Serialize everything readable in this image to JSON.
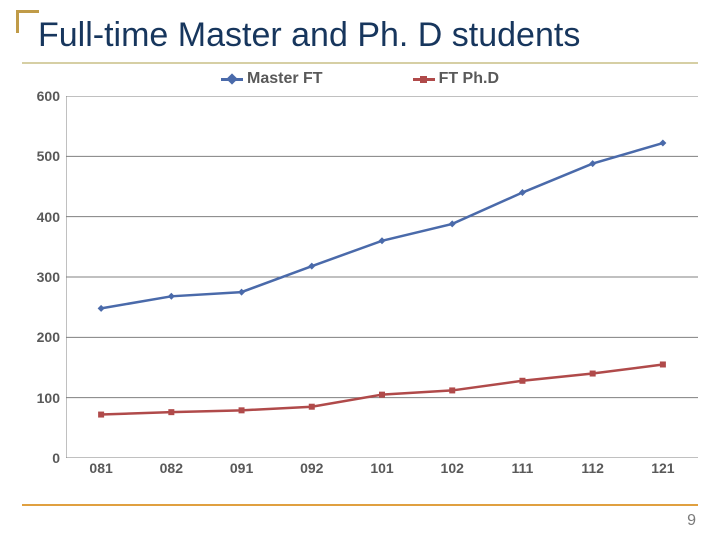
{
  "title": "Full-time Master and Ph. D students",
  "title_color": "#17365d",
  "accent_corner_color": "#c09b48",
  "title_rule_color": "#d6cfa4",
  "bottom_rule_color": "#e0a040",
  "page_number": "9",
  "page_number_color": "#7a7a7a",
  "chart": {
    "type": "line",
    "background_color": "#ffffff",
    "grid_color": "#808080",
    "axis_color": "#808080",
    "yaxis": {
      "min": 0,
      "max": 600,
      "tick_step": 100,
      "label_fontsize": 14,
      "label_color": "#595959"
    },
    "xaxis": {
      "categories": [
        "081",
        "082",
        "091",
        "092",
        "101",
        "102",
        "111",
        "112",
        "121"
      ],
      "label_fontsize": 14,
      "label_color": "#595959"
    },
    "series": [
      {
        "name": "Master FT",
        "color": "#4a6aaa",
        "marker": "diamond",
        "marker_size": 7,
        "line_width": 2.5,
        "values": [
          248,
          268,
          275,
          318,
          360,
          388,
          440,
          488,
          522
        ]
      },
      {
        "name": "FT Ph.D",
        "color": "#b04a4a",
        "marker": "square",
        "marker_size": 6,
        "line_width": 2.5,
        "values": [
          72,
          76,
          79,
          85,
          105,
          112,
          128,
          140,
          155
        ]
      }
    ],
    "legend": {
      "fontsize": 16,
      "color": "#595959"
    }
  }
}
